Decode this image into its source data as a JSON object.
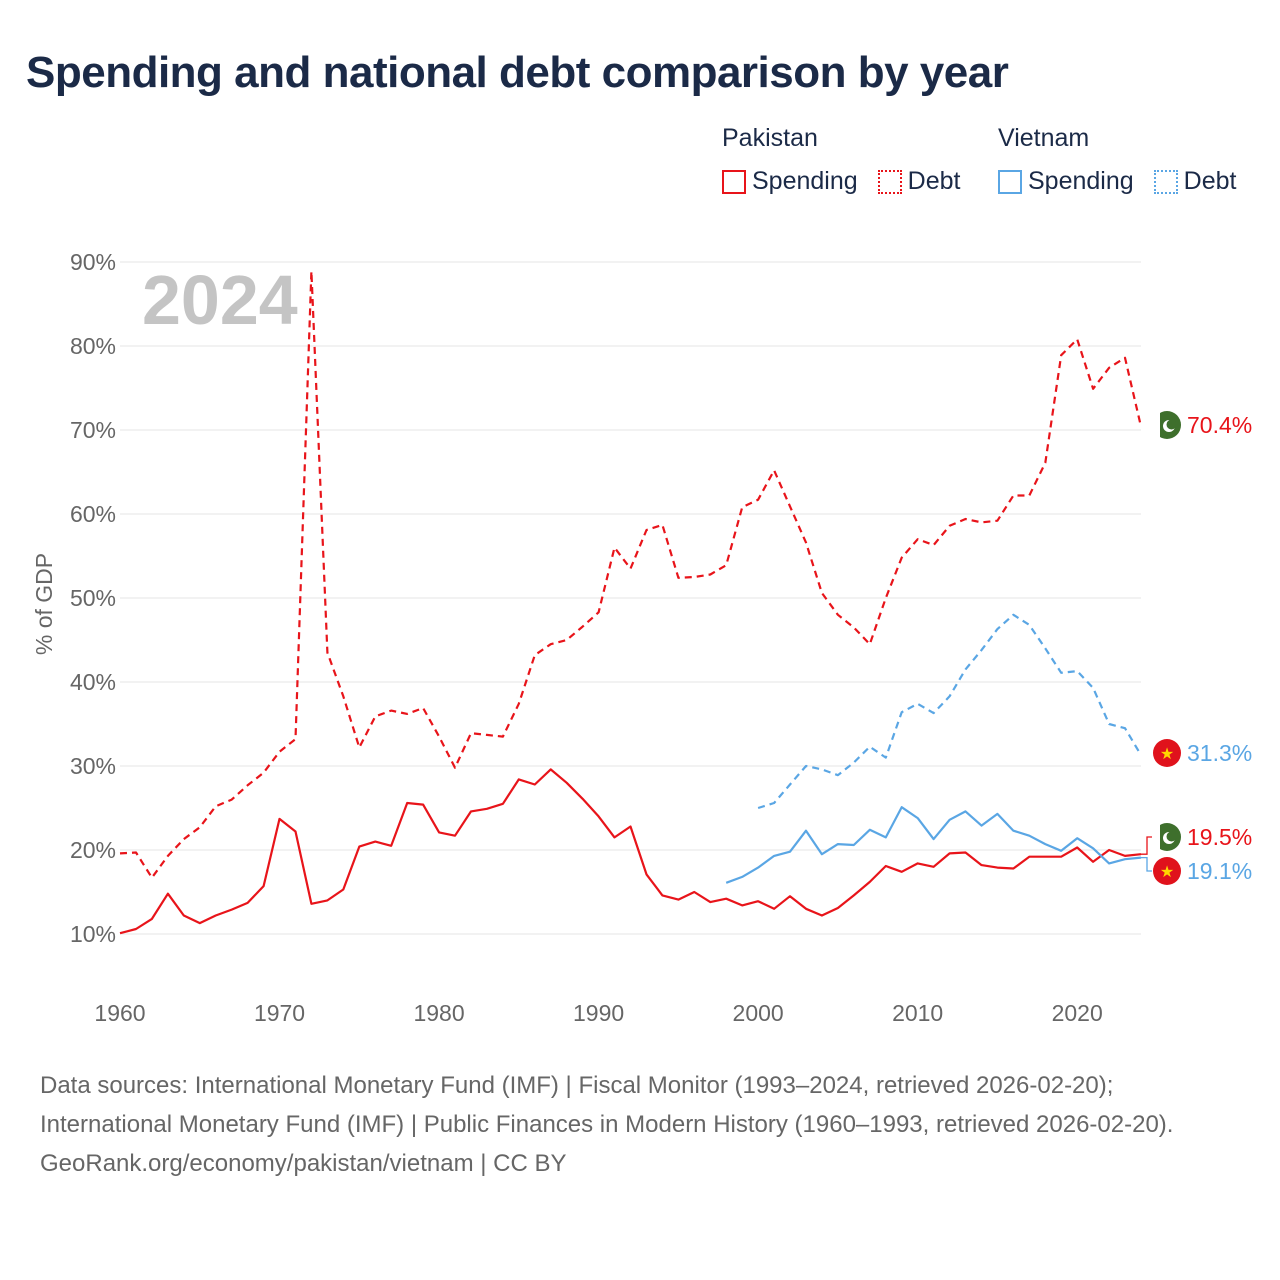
{
  "title": "Spending and national debt comparison by year",
  "year_label": "2024",
  "colors": {
    "pakistan": "#e8141a",
    "vietnam": "#5aa6e4",
    "axis_text": "#666666",
    "grid": "#e4e4e4",
    "title": "#1b2a47",
    "year_watermark": "#c4c4c4",
    "pk_flag": "#3e6f2c",
    "vn_flag": "#e0121c",
    "vn_star": "#ffd700"
  },
  "legend": {
    "groups": [
      {
        "name": "Pakistan",
        "color_key": "pakistan",
        "spending_label": "Spending",
        "debt_label": "Debt"
      },
      {
        "name": "Vietnam",
        "color_key": "vietnam",
        "spending_label": "Spending",
        "debt_label": "Debt"
      }
    ]
  },
  "chart_data": {
    "type": "line",
    "title": "Spending and national debt comparison by year",
    "xlabel": "",
    "ylabel": "% of GDP",
    "xlim": [
      1960,
      2024
    ],
    "ylim": [
      5,
      95
    ],
    "yticks": [
      10,
      20,
      30,
      40,
      50,
      60,
      70,
      80,
      90
    ],
    "ytick_labels": [
      "10%",
      "20%",
      "30%",
      "40%",
      "50%",
      "60%",
      "70%",
      "80%",
      "90%"
    ],
    "xticks": [
      1960,
      1970,
      1980,
      1990,
      2000,
      2010,
      2020
    ],
    "xtick_labels": [
      "1960",
      "1970",
      "1980",
      "1990",
      "2000",
      "2010",
      "2020"
    ],
    "grid": true,
    "series": [
      {
        "name": "Pakistan Debt",
        "country": "pakistan",
        "style": "dashed",
        "color_key": "pakistan",
        "end_label": "70.4%",
        "end_value": 70.4,
        "points": [
          [
            1960,
            19.6
          ],
          [
            1961,
            19.7
          ],
          [
            1962,
            16.7
          ],
          [
            1963,
            19.3
          ],
          [
            1964,
            21.3
          ],
          [
            1965,
            22.7
          ],
          [
            1966,
            25.2
          ],
          [
            1967,
            26
          ],
          [
            1968,
            27.7
          ],
          [
            1969,
            29.2
          ],
          [
            1970,
            31.7
          ],
          [
            1971,
            33.2
          ],
          [
            1972,
            88.9
          ],
          [
            1973,
            43.5
          ],
          [
            1974,
            38.3
          ],
          [
            1975,
            32.2
          ],
          [
            1976,
            35.9
          ],
          [
            1977,
            36.6
          ],
          [
            1978,
            36.2
          ],
          [
            1979,
            36.9
          ],
          [
            1980,
            33.5
          ],
          [
            1981,
            29.8
          ],
          [
            1982,
            33.9
          ],
          [
            1983,
            33.7
          ],
          [
            1984,
            33.5
          ],
          [
            1985,
            37.4
          ],
          [
            1986,
            43.2
          ],
          [
            1987,
            44.5
          ],
          [
            1988,
            45
          ],
          [
            1989,
            46.6
          ],
          [
            1990,
            48.3
          ],
          [
            1991,
            56
          ],
          [
            1992,
            53.5
          ],
          [
            1993,
            58.1
          ],
          [
            1994,
            58.7
          ],
          [
            1995,
            52.4
          ],
          [
            1996,
            52.5
          ],
          [
            1997,
            52.8
          ],
          [
            1998,
            53.9
          ],
          [
            1999,
            60.8
          ],
          [
            2000,
            61.7
          ],
          [
            2001,
            65.2
          ],
          [
            2002,
            60.9
          ],
          [
            2003,
            56.6
          ],
          [
            2004,
            50.6
          ],
          [
            2005,
            48
          ],
          [
            2006,
            46.5
          ],
          [
            2007,
            44.5
          ],
          [
            2008,
            50
          ],
          [
            2009,
            54.8
          ],
          [
            2010,
            57
          ],
          [
            2011,
            56.3
          ],
          [
            2012,
            58.6
          ],
          [
            2013,
            59.4
          ],
          [
            2014,
            59
          ],
          [
            2015,
            59.2
          ],
          [
            2016,
            62.2
          ],
          [
            2017,
            62.2
          ],
          [
            2018,
            66.1
          ],
          [
            2019,
            78.9
          ],
          [
            2020,
            80.8
          ],
          [
            2021,
            74.9
          ],
          [
            2022,
            77.4
          ],
          [
            2023,
            78.6
          ],
          [
            2024,
            70.4
          ]
        ]
      },
      {
        "name": "Pakistan Spending",
        "country": "pakistan",
        "style": "solid",
        "color_key": "pakistan",
        "end_label": "19.5%",
        "end_value": 19.5,
        "points": [
          [
            1960,
            10.1
          ],
          [
            1961,
            10.6
          ],
          [
            1962,
            11.8
          ],
          [
            1963,
            14.8
          ],
          [
            1964,
            12.2
          ],
          [
            1965,
            11.3
          ],
          [
            1966,
            12.2
          ],
          [
            1967,
            12.9
          ],
          [
            1968,
            13.7
          ],
          [
            1969,
            15.7
          ],
          [
            1970,
            23.7
          ],
          [
            1971,
            22.2
          ],
          [
            1972,
            13.6
          ],
          [
            1973,
            14
          ],
          [
            1974,
            15.3
          ],
          [
            1975,
            20.4
          ],
          [
            1976,
            21
          ],
          [
            1977,
            20.5
          ],
          [
            1978,
            25.6
          ],
          [
            1979,
            25.4
          ],
          [
            1980,
            22.1
          ],
          [
            1981,
            21.7
          ],
          [
            1982,
            24.6
          ],
          [
            1983,
            24.9
          ],
          [
            1984,
            25.5
          ],
          [
            1985,
            28.4
          ],
          [
            1986,
            27.8
          ],
          [
            1987,
            29.6
          ],
          [
            1988,
            28
          ],
          [
            1989,
            26.1
          ],
          [
            1990,
            24
          ],
          [
            1991,
            21.5
          ],
          [
            1992,
            22.8
          ],
          [
            1993,
            17.1
          ],
          [
            1994,
            14.6
          ],
          [
            1995,
            14.1
          ],
          [
            1996,
            15
          ],
          [
            1997,
            13.8
          ],
          [
            1998,
            14.2
          ],
          [
            1999,
            13.4
          ],
          [
            2000,
            13.9
          ],
          [
            2001,
            13
          ],
          [
            2002,
            14.5
          ],
          [
            2003,
            13
          ],
          [
            2004,
            12.2
          ],
          [
            2005,
            13.1
          ],
          [
            2006,
            14.6
          ],
          [
            2007,
            16.2
          ],
          [
            2008,
            18.1
          ],
          [
            2009,
            17.4
          ],
          [
            2010,
            18.4
          ],
          [
            2011,
            18
          ],
          [
            2012,
            19.6
          ],
          [
            2013,
            19.7
          ],
          [
            2014,
            18.2
          ],
          [
            2015,
            17.9
          ],
          [
            2016,
            17.8
          ],
          [
            2017,
            19.2
          ],
          [
            2018,
            19.2
          ],
          [
            2019,
            19.2
          ],
          [
            2020,
            20.3
          ],
          [
            2021,
            18.6
          ],
          [
            2022,
            20
          ],
          [
            2023,
            19.3
          ],
          [
            2024,
            19.5
          ]
        ]
      },
      {
        "name": "Vietnam Debt",
        "country": "vietnam",
        "style": "dashed",
        "color_key": "vietnam",
        "end_label": "31.3%",
        "end_value": 31.3,
        "points": [
          [
            2000,
            25
          ],
          [
            2001,
            25.6
          ],
          [
            2002,
            27.8
          ],
          [
            2003,
            30
          ],
          [
            2004,
            29.6
          ],
          [
            2005,
            28.9
          ],
          [
            2006,
            30.4
          ],
          [
            2007,
            32.3
          ],
          [
            2008,
            31
          ],
          [
            2009,
            36.4
          ],
          [
            2010,
            37.4
          ],
          [
            2011,
            36.3
          ],
          [
            2012,
            38.3
          ],
          [
            2013,
            41.5
          ],
          [
            2014,
            43.8
          ],
          [
            2015,
            46.3
          ],
          [
            2016,
            48
          ],
          [
            2017,
            46.8
          ],
          [
            2018,
            44
          ],
          [
            2019,
            41.1
          ],
          [
            2020,
            41.3
          ],
          [
            2021,
            39.3
          ],
          [
            2022,
            35
          ],
          [
            2023,
            34.5
          ],
          [
            2024,
            31.3
          ]
        ]
      },
      {
        "name": "Vietnam Spending",
        "country": "vietnam",
        "style": "solid",
        "color_key": "vietnam",
        "end_label": "19.1%",
        "end_value": 19.1,
        "points": [
          [
            1998,
            16.1
          ],
          [
            1999,
            16.8
          ],
          [
            2000,
            17.9
          ],
          [
            2001,
            19.3
          ],
          [
            2002,
            19.8
          ],
          [
            2003,
            22.3
          ],
          [
            2004,
            19.5
          ],
          [
            2005,
            20.7
          ],
          [
            2006,
            20.6
          ],
          [
            2007,
            22.4
          ],
          [
            2008,
            21.5
          ],
          [
            2009,
            25.1
          ],
          [
            2010,
            23.8
          ],
          [
            2011,
            21.3
          ],
          [
            2012,
            23.6
          ],
          [
            2013,
            24.6
          ],
          [
            2014,
            22.9
          ],
          [
            2015,
            24.3
          ],
          [
            2016,
            22.3
          ],
          [
            2017,
            21.7
          ],
          [
            2018,
            20.7
          ],
          [
            2019,
            19.9
          ],
          [
            2020,
            21.4
          ],
          [
            2021,
            20.2
          ],
          [
            2022,
            18.4
          ],
          [
            2023,
            18.9
          ],
          [
            2024,
            19.1
          ]
        ]
      }
    ]
  },
  "footer": {
    "sources": "Data sources: International Monetary Fund (IMF) | Fiscal Monitor (1993–2024, retrieved 2026-02-20); International Monetary Fund (IMF) | Public Finances in Modern History (1960–1993, retrieved 2026-02-20).",
    "credit": "GeoRank.org/economy/pakistan/vietnam | CC BY"
  }
}
